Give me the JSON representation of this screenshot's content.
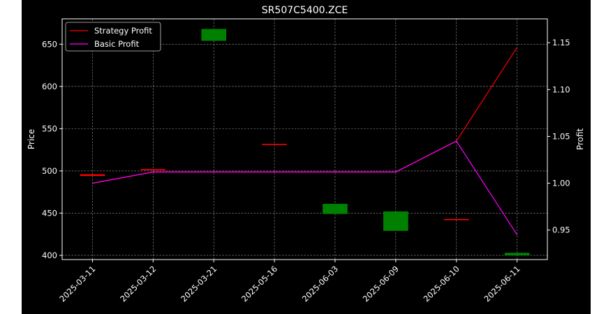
{
  "chart_data": {
    "type": "candlestick",
    "title": "SR507C5400.ZCE",
    "ylabel_left": "Price",
    "ylabel_right": "Profit",
    "xlabel": "",
    "categories": [
      "2025-03-11",
      "2025-03-12",
      "2025-03-21",
      "2025-05-16",
      "2025-06-03",
      "2025-06-09",
      "2025-06-10",
      "2025-06-11"
    ],
    "ylim_left": [
      395,
      680
    ],
    "yticks_left": [
      400,
      450,
      500,
      550,
      600,
      650
    ],
    "ylim_right": [
      0.9185,
      1.1755
    ],
    "yticks_right": [
      0.95,
      1.0,
      1.05,
      1.1,
      1.15
    ],
    "grid": true,
    "legend_position": "top-left",
    "candles": [
      {
        "date": "2025-03-11",
        "open": 494,
        "close": 496,
        "color": "#ff0000"
      },
      {
        "date": "2025-03-12",
        "open": 501,
        "close": 502,
        "color": "#ff0000"
      },
      {
        "date": "2025-03-21",
        "open": 654,
        "close": 668,
        "color": "#008000"
      },
      {
        "date": "2025-05-16",
        "open": 531,
        "close": 532,
        "color": "#ff0000"
      },
      {
        "date": "2025-06-03",
        "open": 449,
        "close": 461,
        "color": "#008000"
      },
      {
        "date": "2025-06-09",
        "open": 429,
        "close": 452,
        "color": "#008000"
      },
      {
        "date": "2025-06-10",
        "open": 442,
        "close": 443,
        "color": "#ff0000"
      },
      {
        "date": "2025-06-11",
        "open": 400,
        "close": 403,
        "color": "#008000"
      }
    ],
    "series": [
      {
        "name": "Strategy Profit",
        "color": "#ff0000",
        "axis": "right",
        "values": [
          1.0,
          1.012,
          1.012,
          1.012,
          1.012,
          1.012,
          1.045,
          1.145
        ]
      },
      {
        "name": "Basic Profit",
        "color": "#ff00ff",
        "axis": "right",
        "values": [
          1.0,
          1.012,
          1.012,
          1.012,
          1.012,
          1.012,
          1.045,
          0.945
        ]
      }
    ]
  },
  "colors": {
    "figure_background": "#000000",
    "frame_background": "#ffffff",
    "text": "#ffffff",
    "grid": "#9a9a9a"
  }
}
